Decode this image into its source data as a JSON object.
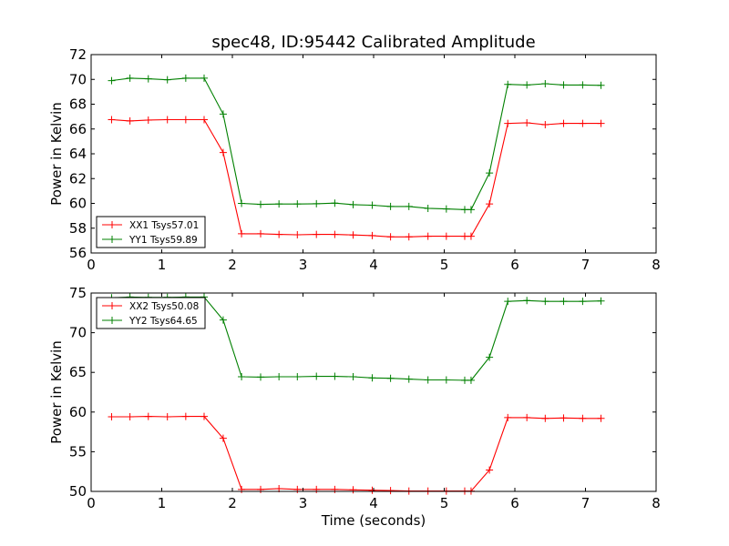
{
  "figure": {
    "title": "spec48, ID:95442 Calibrated Amplitude",
    "xlabel": "Time (seconds)"
  },
  "chart_data": [
    {
      "type": "line",
      "ylabel": "Power in Kelvin",
      "xlim": [
        0,
        8
      ],
      "ylim": [
        56,
        72
      ],
      "xticks": [
        0,
        1,
        2,
        3,
        4,
        5,
        6,
        7,
        8
      ],
      "yticks": [
        56,
        58,
        60,
        62,
        64,
        66,
        68,
        70,
        72
      ],
      "legend_placement": "lower-left",
      "x": [
        0.29,
        0.55,
        0.81,
        1.08,
        1.34,
        1.6,
        1.87,
        2.13,
        2.4,
        2.66,
        2.92,
        3.19,
        3.45,
        3.71,
        3.98,
        4.24,
        4.5,
        4.77,
        5.03,
        5.29,
        5.38,
        5.64,
        5.9,
        6.17,
        6.43,
        6.69,
        6.96,
        7.22
      ],
      "series": [
        {
          "name": "XX1 Tsys57.01",
          "color": "#ff0000",
          "values": [
            66.75,
            66.65,
            66.72,
            66.75,
            66.75,
            66.75,
            64.1,
            57.55,
            57.55,
            57.5,
            57.47,
            57.5,
            57.5,
            57.45,
            57.4,
            57.3,
            57.3,
            57.35,
            57.35,
            57.35,
            57.35,
            59.95,
            66.45,
            66.5,
            66.35,
            66.45,
            66.45,
            66.45
          ]
        },
        {
          "name": "YY1 Tsys59.89",
          "color": "#008000",
          "values": [
            69.9,
            70.1,
            70.05,
            69.97,
            70.1,
            70.1,
            67.2,
            60.0,
            59.92,
            59.95,
            59.95,
            59.97,
            60.02,
            59.9,
            59.85,
            59.75,
            59.75,
            59.6,
            59.55,
            59.5,
            59.5,
            62.45,
            69.6,
            69.55,
            69.65,
            69.55,
            69.55,
            69.52
          ]
        }
      ]
    },
    {
      "type": "line",
      "ylabel": "Power in Kelvin",
      "xlim": [
        0,
        8
      ],
      "ylim": [
        50,
        75
      ],
      "xticks": [
        0,
        1,
        2,
        3,
        4,
        5,
        6,
        7,
        8
      ],
      "yticks": [
        50,
        55,
        60,
        65,
        70,
        75
      ],
      "legend_placement": "upper-left",
      "x": [
        0.29,
        0.55,
        0.81,
        1.08,
        1.34,
        1.6,
        1.87,
        2.13,
        2.4,
        2.66,
        2.92,
        3.19,
        3.45,
        3.71,
        3.98,
        4.24,
        4.5,
        4.77,
        5.03,
        5.29,
        5.38,
        5.64,
        5.9,
        6.17,
        6.43,
        6.69,
        6.96,
        7.22
      ],
      "series": [
        {
          "name": "XX2 Tsys50.08",
          "color": "#ff0000",
          "values": [
            59.4,
            59.4,
            59.45,
            59.4,
            59.45,
            59.45,
            56.7,
            50.25,
            50.25,
            50.35,
            50.25,
            50.25,
            50.25,
            50.2,
            50.15,
            50.1,
            50.05,
            50.05,
            50.05,
            50.05,
            50.05,
            52.7,
            59.3,
            59.3,
            59.2,
            59.25,
            59.2,
            59.2
          ]
        },
        {
          "name": "YY2 Tsys64.65",
          "color": "#008000",
          "values": [
            74.4,
            74.5,
            74.45,
            74.45,
            74.5,
            74.5,
            71.6,
            64.45,
            64.4,
            64.45,
            64.45,
            64.5,
            64.5,
            64.45,
            64.3,
            64.25,
            64.15,
            64.05,
            64.05,
            64.0,
            64.0,
            66.9,
            73.95,
            74.05,
            73.95,
            73.95,
            73.95,
            74.0
          ]
        }
      ]
    }
  ]
}
